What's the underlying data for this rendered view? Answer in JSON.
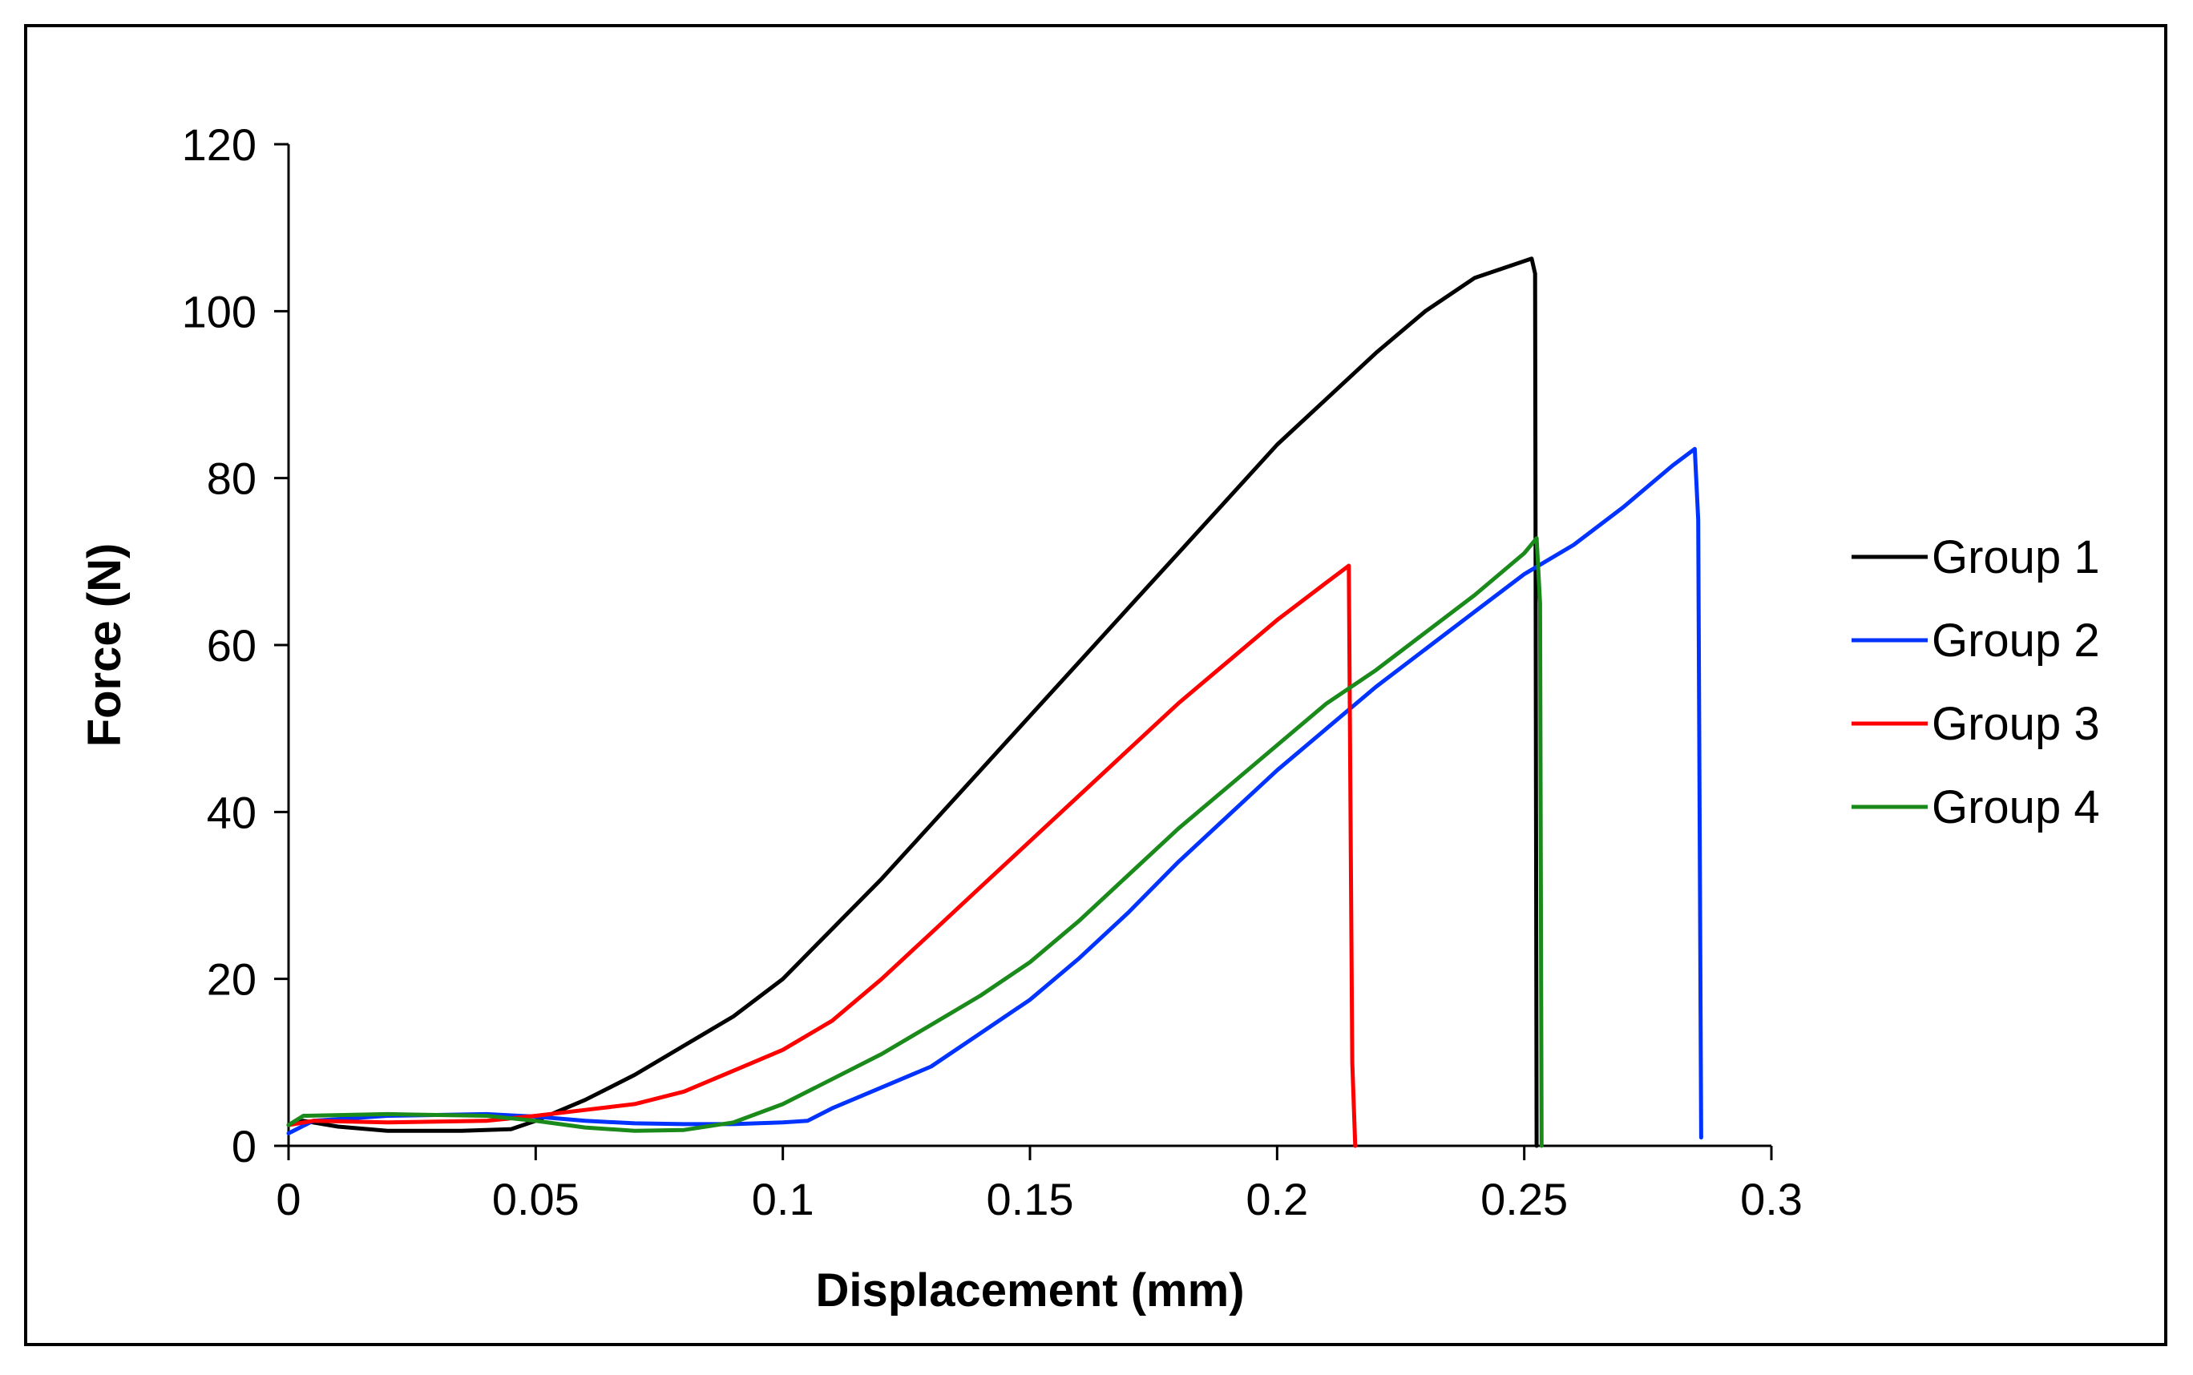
{
  "chart_data": {
    "type": "line",
    "xlabel": "Displacement (mm)",
    "ylabel": "Force (N)",
    "xlim": [
      0,
      0.3
    ],
    "ylim": [
      0,
      120
    ],
    "xticks": [
      0,
      0.05,
      0.1,
      0.15,
      0.2,
      0.25,
      0.3
    ],
    "xtick_labels": [
      "0",
      "0.05",
      "0.1",
      "0.15",
      "0.2",
      "0.25",
      "0.3"
    ],
    "yticks": [
      0,
      20,
      40,
      60,
      80,
      100,
      120
    ],
    "ytick_labels": [
      "0",
      "20",
      "40",
      "60",
      "80",
      "100",
      "120"
    ],
    "legend_position": "right",
    "series": [
      {
        "name": "Group 1",
        "color": "#000000",
        "x": [
          0,
          0.003,
          0.01,
          0.02,
          0.035,
          0.045,
          0.05,
          0.06,
          0.07,
          0.08,
          0.09,
          0.1,
          0.11,
          0.12,
          0.13,
          0.14,
          0.15,
          0.16,
          0.17,
          0.18,
          0.19,
          0.2,
          0.21,
          0.22,
          0.23,
          0.24,
          0.2515,
          0.2522,
          0.2525
        ],
        "y": [
          2.5,
          3.0,
          2.3,
          1.8,
          1.8,
          2.0,
          3.0,
          5.5,
          8.5,
          12.0,
          15.5,
          20.0,
          26.0,
          32.0,
          38.5,
          45.0,
          51.5,
          58.0,
          64.5,
          71.0,
          77.5,
          84.0,
          89.5,
          95.0,
          100.0,
          104.0,
          106.3,
          104.5,
          0.0
        ]
      },
      {
        "name": "Group 2",
        "color": "#0033ff",
        "x": [
          0,
          0.005,
          0.02,
          0.04,
          0.05,
          0.06,
          0.07,
          0.08,
          0.09,
          0.1,
          0.105,
          0.11,
          0.12,
          0.13,
          0.14,
          0.15,
          0.16,
          0.17,
          0.18,
          0.19,
          0.2,
          0.21,
          0.22,
          0.23,
          0.24,
          0.25,
          0.26,
          0.27,
          0.28,
          0.2845,
          0.2852,
          0.2858
        ],
        "y": [
          1.5,
          3.0,
          3.6,
          3.8,
          3.5,
          3.0,
          2.7,
          2.6,
          2.6,
          2.8,
          3.0,
          4.5,
          7.0,
          9.5,
          13.5,
          17.5,
          22.5,
          28.0,
          34.0,
          39.5,
          45.0,
          50.0,
          55.0,
          59.5,
          64.0,
          68.5,
          72.0,
          76.5,
          81.5,
          83.5,
          75.0,
          1.0
        ]
      },
      {
        "name": "Group 3",
        "color": "#ff0000",
        "x": [
          0,
          0.005,
          0.02,
          0.04,
          0.05,
          0.06,
          0.07,
          0.08,
          0.09,
          0.1,
          0.11,
          0.12,
          0.13,
          0.14,
          0.15,
          0.16,
          0.17,
          0.18,
          0.19,
          0.2,
          0.21,
          0.2145,
          0.2152,
          0.2158
        ],
        "y": [
          2.5,
          3.0,
          2.8,
          3.0,
          3.6,
          4.3,
          5.0,
          6.5,
          9.0,
          11.5,
          15.0,
          20.0,
          25.5,
          31.0,
          36.5,
          42.0,
          47.5,
          53.0,
          58.0,
          63.0,
          67.5,
          69.5,
          10.0,
          0.0
        ]
      },
      {
        "name": "Group 4",
        "color": "#1a8a1a",
        "x": [
          0,
          0.003,
          0.02,
          0.04,
          0.05,
          0.06,
          0.07,
          0.08,
          0.09,
          0.1,
          0.11,
          0.12,
          0.13,
          0.14,
          0.15,
          0.16,
          0.17,
          0.18,
          0.19,
          0.2,
          0.21,
          0.22,
          0.23,
          0.24,
          0.25,
          0.2525,
          0.2532,
          0.2535
        ],
        "y": [
          2.5,
          3.6,
          3.8,
          3.6,
          3.0,
          2.2,
          1.8,
          1.9,
          2.8,
          5.0,
          8.0,
          11.0,
          14.5,
          18.0,
          22.0,
          27.0,
          32.5,
          38.0,
          43.0,
          48.0,
          53.0,
          57.0,
          61.5,
          66.0,
          71.0,
          72.8,
          65.0,
          0.0
        ]
      }
    ]
  }
}
